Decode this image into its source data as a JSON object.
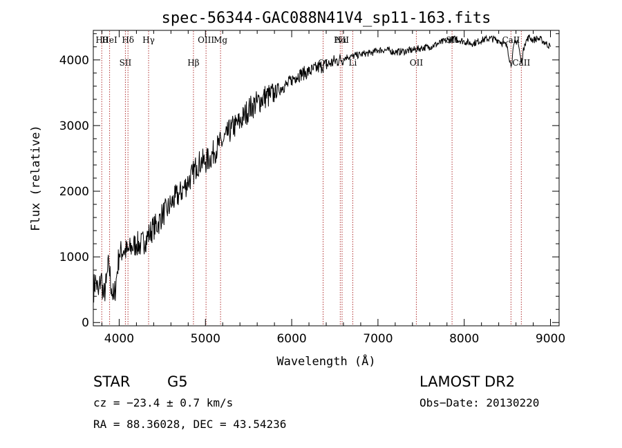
{
  "chart_data": {
    "type": "line",
    "title": "spec-56344-GAC088N41V4_sp11-163.fits",
    "xlabel": "Wavelength (Å)",
    "ylabel": "Flux (relative)",
    "xlim": [
      3700,
      9100
    ],
    "ylim": [
      -50,
      4450
    ],
    "x_ticks": [
      4000,
      5000,
      6000,
      7000,
      8000,
      9000
    ],
    "y_ticks": [
      0,
      1000,
      2000,
      3000,
      4000
    ],
    "grid": false,
    "line_color": "#000000",
    "marker_color": "#b03030",
    "series": [
      {
        "x": [
          3700,
          3730,
          3760,
          3790,
          3820,
          3850,
          3880,
          3910,
          3940,
          3970,
          4000,
          4050,
          4100,
          4150,
          4200,
          4250,
          4300,
          4350,
          4400,
          4450,
          4500,
          4550,
          4600,
          4650,
          4700,
          4750,
          4800,
          4850,
          4900,
          4950,
          5000,
          5050,
          5100,
          5150,
          5200,
          5250,
          5300,
          5350,
          5400,
          5450,
          5500,
          5550,
          5600,
          5650,
          5700,
          5750,
          5800,
          5850,
          5900,
          5950,
          6000,
          6050,
          6100,
          6150,
          6200,
          6250,
          6300,
          6350,
          6400,
          6450,
          6500,
          6550,
          6600,
          6650,
          6700,
          6750,
          6800,
          6850,
          6900,
          6950,
          7000,
          7100,
          7200,
          7300,
          7400,
          7500,
          7600,
          7700,
          7800,
          7900,
          8000,
          8100,
          8200,
          8300,
          8400,
          8450,
          8500,
          8542,
          8580,
          8620,
          8662,
          8700,
          8750,
          8800,
          8850,
          8900,
          8950,
          9000
        ],
        "y": [
          500,
          650,
          420,
          720,
          380,
          600,
          900,
          520,
          350,
          700,
          1050,
          1100,
          1080,
          1150,
          1200,
          1180,
          1250,
          1350,
          1450,
          1500,
          1650,
          1700,
          1800,
          1900,
          1950,
          2050,
          2150,
          2250,
          2400,
          2450,
          2450,
          2500,
          2600,
          2700,
          2750,
          2850,
          2950,
          3000,
          3050,
          3150,
          3250,
          3300,
          3350,
          3400,
          3450,
          3450,
          3500,
          3550,
          3600,
          3620,
          3700,
          3750,
          3780,
          3800,
          3820,
          3850,
          3880,
          3900,
          3920,
          3950,
          3980,
          4000,
          4020,
          4050,
          4050,
          4070,
          4080,
          4100,
          4100,
          4120,
          4150,
          4150,
          4120,
          4130,
          4150,
          4180,
          4200,
          4250,
          4300,
          4320,
          4280,
          4250,
          4300,
          4330,
          4300,
          4250,
          4200,
          3900,
          4250,
          4300,
          3950,
          4250,
          4350,
          4300,
          4330,
          4300,
          4250,
          4200
        ]
      }
    ],
    "lines": [
      {
        "x": 3798,
        "label": "Hθ",
        "row": "top"
      },
      {
        "x": 3889,
        "label": "HeI",
        "row": "top"
      },
      {
        "x": 4072,
        "label": "SII",
        "row": "low"
      },
      {
        "x": 4102,
        "label": "Hδ",
        "row": "top"
      },
      {
        "x": 4341,
        "label": "Hγ",
        "row": "top"
      },
      {
        "x": 4861,
        "label": "Hβ",
        "row": "low"
      },
      {
        "x": 5007,
        "label": "OIII",
        "row": "top"
      },
      {
        "x": 5175,
        "label": "Mg",
        "row": "top"
      },
      {
        "x": 6364,
        "label": "OI",
        "row": "low"
      },
      {
        "x": 6563,
        "label": "Hα",
        "row": "top"
      },
      {
        "x": 6584,
        "label": "NII",
        "row": "top"
      },
      {
        "x": 6708,
        "label": "Li",
        "row": "low"
      },
      {
        "x": 7445,
        "label": "OII",
        "row": "low"
      },
      {
        "x": 7859,
        "label": "SII",
        "row": "top"
      },
      {
        "x": 8542,
        "label": "CaII",
        "row": "top"
      },
      {
        "x": 8662,
        "label": "CaII",
        "row": "low"
      }
    ]
  },
  "info": {
    "class_label": "STAR",
    "subclass_label": "G5",
    "survey_label": "LAMOST DR2",
    "cz_text": "cz = −23.4 ± 0.7 km/s",
    "obs_date_text": "Obs−Date: 20130220",
    "radec_text": "RA =  88.36028, DEC =  43.54236"
  }
}
